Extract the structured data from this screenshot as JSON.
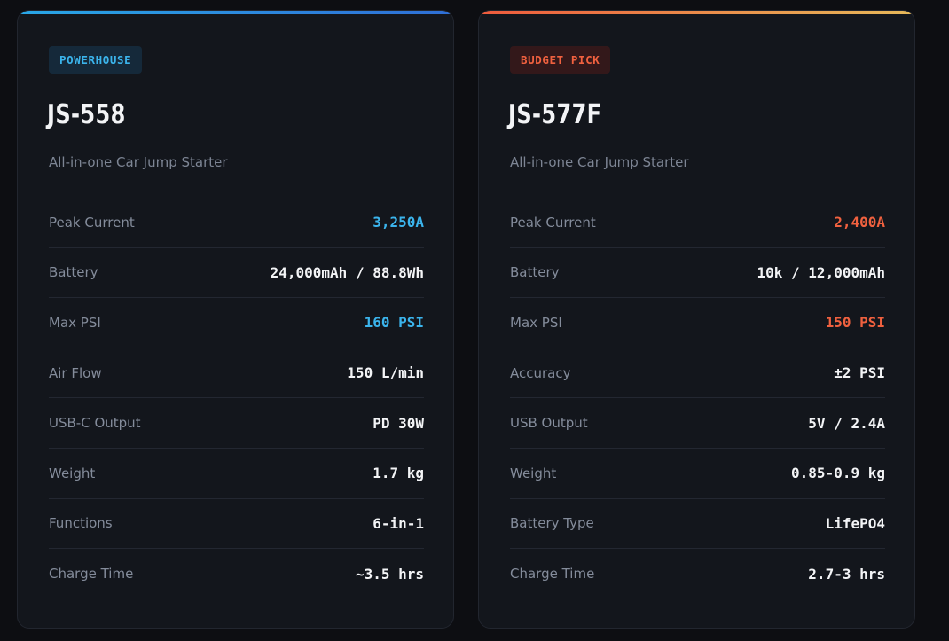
{
  "colors": {
    "background": "#0d0e12",
    "card": "#13161c",
    "blue_accent": "#3bb4ec",
    "orange_accent": "#f0613f",
    "text_primary": "#f3f4f6",
    "text_muted": "#848c9b"
  },
  "cards": [
    {
      "badge": "POWERHOUSE",
      "title": "JS-558",
      "subtitle": "All-in-one Car Jump Starter",
      "specs": [
        {
          "label": "Peak Current",
          "value": "3,250A",
          "highlight": true
        },
        {
          "label": "Battery",
          "value": "24,000mAh / 88.8Wh",
          "highlight": false
        },
        {
          "label": "Max PSI",
          "value": "160 PSI",
          "highlight": true
        },
        {
          "label": "Air Flow",
          "value": "150 L/min",
          "highlight": false
        },
        {
          "label": "USB-C Output",
          "value": "PD 30W",
          "highlight": false
        },
        {
          "label": "Weight",
          "value": "1.7 kg",
          "highlight": false
        },
        {
          "label": "Functions",
          "value": "6-in-1",
          "highlight": false
        },
        {
          "label": "Charge Time",
          "value": "~3.5 hrs",
          "highlight": false
        }
      ]
    },
    {
      "badge": "BUDGET PICK",
      "title": "JS-577F",
      "subtitle": "All-in-one Car Jump Starter",
      "specs": [
        {
          "label": "Peak Current",
          "value": "2,400A",
          "highlight": true
        },
        {
          "label": "Battery",
          "value": "10k / 12,000mAh",
          "highlight": false
        },
        {
          "label": "Max PSI",
          "value": "150 PSI",
          "highlight": true
        },
        {
          "label": "Accuracy",
          "value": "±2 PSI",
          "highlight": false
        },
        {
          "label": "USB Output",
          "value": "5V / 2.4A",
          "highlight": false
        },
        {
          "label": "Weight",
          "value": "0.85-0.9 kg",
          "highlight": false
        },
        {
          "label": "Battery Type",
          "value": "LifePO4",
          "highlight": false
        },
        {
          "label": "Charge Time",
          "value": "2.7-3 hrs",
          "highlight": false
        }
      ]
    }
  ]
}
